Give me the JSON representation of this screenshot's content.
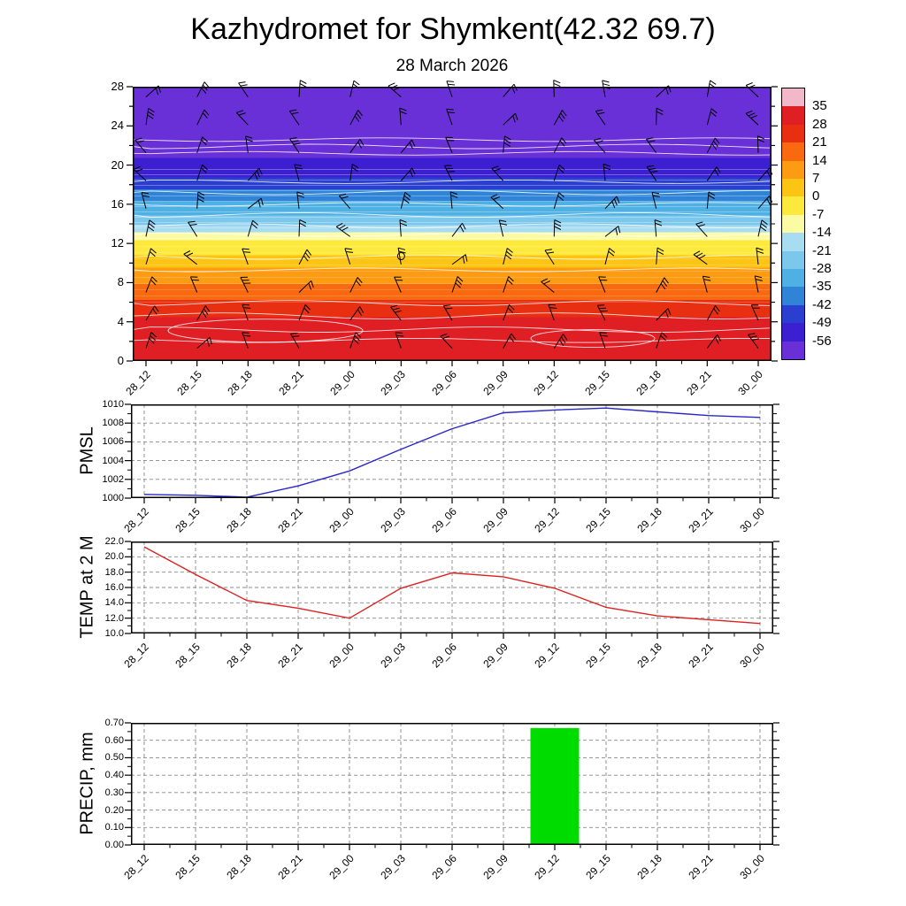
{
  "title": "Kazhydromet for Shymkent(42.32 69.7)",
  "subtitle": "28 March 2026",
  "time_labels": [
    "28_12",
    "28_15",
    "28_18",
    "28_21",
    "29_00",
    "29_03",
    "29_06",
    "29_09",
    "29_12",
    "29_15",
    "29_18",
    "29_21",
    "30_00"
  ],
  "panel_labels": {
    "pmsl": "PMSL",
    "temp": "TEMP at 2 M",
    "precip": "PRECIP, mm"
  },
  "colors": {
    "pmsl_line": "#2828c8",
    "temp_line": "#dd2222",
    "precip_bar": "#00dc00",
    "grid": "#888888",
    "axis": "#000000",
    "background": "#ffffff"
  },
  "cross_section": {
    "y_ticks": [
      0,
      4,
      8,
      12,
      16,
      20,
      24,
      28
    ],
    "colorbar_tick_labels": [
      "35",
      "28",
      "21",
      "14",
      "7",
      "0",
      "-7",
      "-14",
      "-21",
      "-28",
      "-35",
      "-42",
      "-49",
      "-56"
    ],
    "colorbar_colors_top_to_bottom": [
      "#f0b8c8",
      "#e01f25",
      "#e82f12",
      "#f96a10",
      "#fd9b12",
      "#fdc513",
      "#fde83c",
      "#fbfba4",
      "#a8dcf0",
      "#7cc8ec",
      "#4fb0e4",
      "#2f84d8",
      "#2a3fd0",
      "#3b1fd0",
      "#6a30d8"
    ],
    "fill_bands": [
      {
        "color": "#6a30d8",
        "from": 0,
        "to": 26
      },
      {
        "color": "#3b1fd0",
        "from": 26,
        "to": 33
      },
      {
        "color": "#2a3fd0",
        "from": 33,
        "to": 37.5
      },
      {
        "color": "#2f84d8",
        "from": 37.5,
        "to": 41.8
      },
      {
        "color": "#4fb0e4",
        "from": 41.8,
        "to": 47
      },
      {
        "color": "#7cc8ec",
        "from": 47,
        "to": 50.5
      },
      {
        "color": "#a8dcf0",
        "from": 50.5,
        "to": 53
      },
      {
        "color": "#fbfba4",
        "from": 53,
        "to": 56
      },
      {
        "color": "#fde83c",
        "from": 56,
        "to": 61.4
      },
      {
        "color": "#fdc513",
        "from": 61.4,
        "to": 66
      },
      {
        "color": "#fd9b12",
        "from": 66,
        "to": 72
      },
      {
        "color": "#f96a10",
        "from": 72,
        "to": 77.8
      },
      {
        "color": "#e82f12",
        "from": 77.8,
        "to": 84
      },
      {
        "color": "#e01f25",
        "from": 84,
        "to": 100
      }
    ]
  },
  "chart_data": [
    {
      "type": "heatmap",
      "name": "temperature-wind-cross-section",
      "title": "28 March 2026",
      "x": [
        "28_12",
        "28_15",
        "28_18",
        "28_21",
        "29_00",
        "29_03",
        "29_06",
        "29_09",
        "29_12",
        "29_15",
        "29_18",
        "29_21",
        "30_00"
      ],
      "ylim": [
        0,
        28
      ],
      "yticks": [
        0,
        4,
        8,
        12,
        16,
        20,
        24,
        28
      ],
      "colorbar_ticks": [
        35,
        28,
        21,
        14,
        7,
        0,
        -7,
        -14,
        -21,
        -28,
        -35,
        -42,
        -49,
        -56
      ],
      "legend_position": "right",
      "notes": "Time-height cross-section filled by temperature with wind barbs overlaid: red/orange (14 to 28+) below height 6, orange-yellow (0 to 14) heights 6-11, pale band (-7 to -14) near 12-13, light blues (-14 to -28) heights 13-17, dark blue (-35 to -49) 17-20, purple (below -56) 20-28."
    },
    {
      "type": "line",
      "name": "PMSL",
      "x": [
        "28_12",
        "28_15",
        "28_18",
        "28_21",
        "29_00",
        "29_03",
        "29_06",
        "29_09",
        "29_12",
        "29_15",
        "29_18",
        "29_21",
        "30_00"
      ],
      "values": [
        1000.4,
        1000.3,
        1000.1,
        1001.3,
        1002.9,
        1005.2,
        1007.4,
        1009.1,
        1009.4,
        1009.6,
        1009.2,
        1008.8,
        1008.6
      ],
      "ylim": [
        1000,
        1010
      ],
      "yticks": [
        "1000",
        "1002",
        "1004",
        "1006",
        "1008",
        "1010"
      ],
      "color": "#2828c8",
      "grid": "dashed"
    },
    {
      "type": "line",
      "name": "TEMP at 2 M",
      "x": [
        "28_12",
        "28_15",
        "28_18",
        "28_21",
        "29_00",
        "29_03",
        "29_06",
        "29_09",
        "29_12",
        "29_15",
        "29_18",
        "29_21",
        "30_00"
      ],
      "values": [
        21.3,
        17.7,
        14.3,
        13.3,
        12.0,
        15.9,
        17.9,
        17.4,
        15.9,
        13.4,
        12.3,
        11.8,
        11.3
      ],
      "ylim": [
        10,
        22
      ],
      "yticks": [
        "10.0",
        "12.0",
        "14.0",
        "16.0",
        "18.0",
        "20.0",
        "22.0"
      ],
      "color": "#dd2222",
      "grid": "dashed"
    },
    {
      "type": "bar",
      "name": "PRECIP, mm",
      "x": [
        "28_12",
        "28_15",
        "28_18",
        "28_21",
        "29_00",
        "29_03",
        "29_06",
        "29_09",
        "29_12",
        "29_15",
        "29_18",
        "29_21",
        "30_00"
      ],
      "values": [
        0,
        0,
        0,
        0,
        0,
        0,
        0,
        0,
        0.67,
        0,
        0,
        0,
        0
      ],
      "ylim": [
        0,
        0.7
      ],
      "yticks": [
        "0.00",
        "0.10",
        "0.20",
        "0.30",
        "0.40",
        "0.50",
        "0.60",
        "0.70"
      ],
      "color": "#00dc00",
      "grid": "dashed"
    }
  ]
}
